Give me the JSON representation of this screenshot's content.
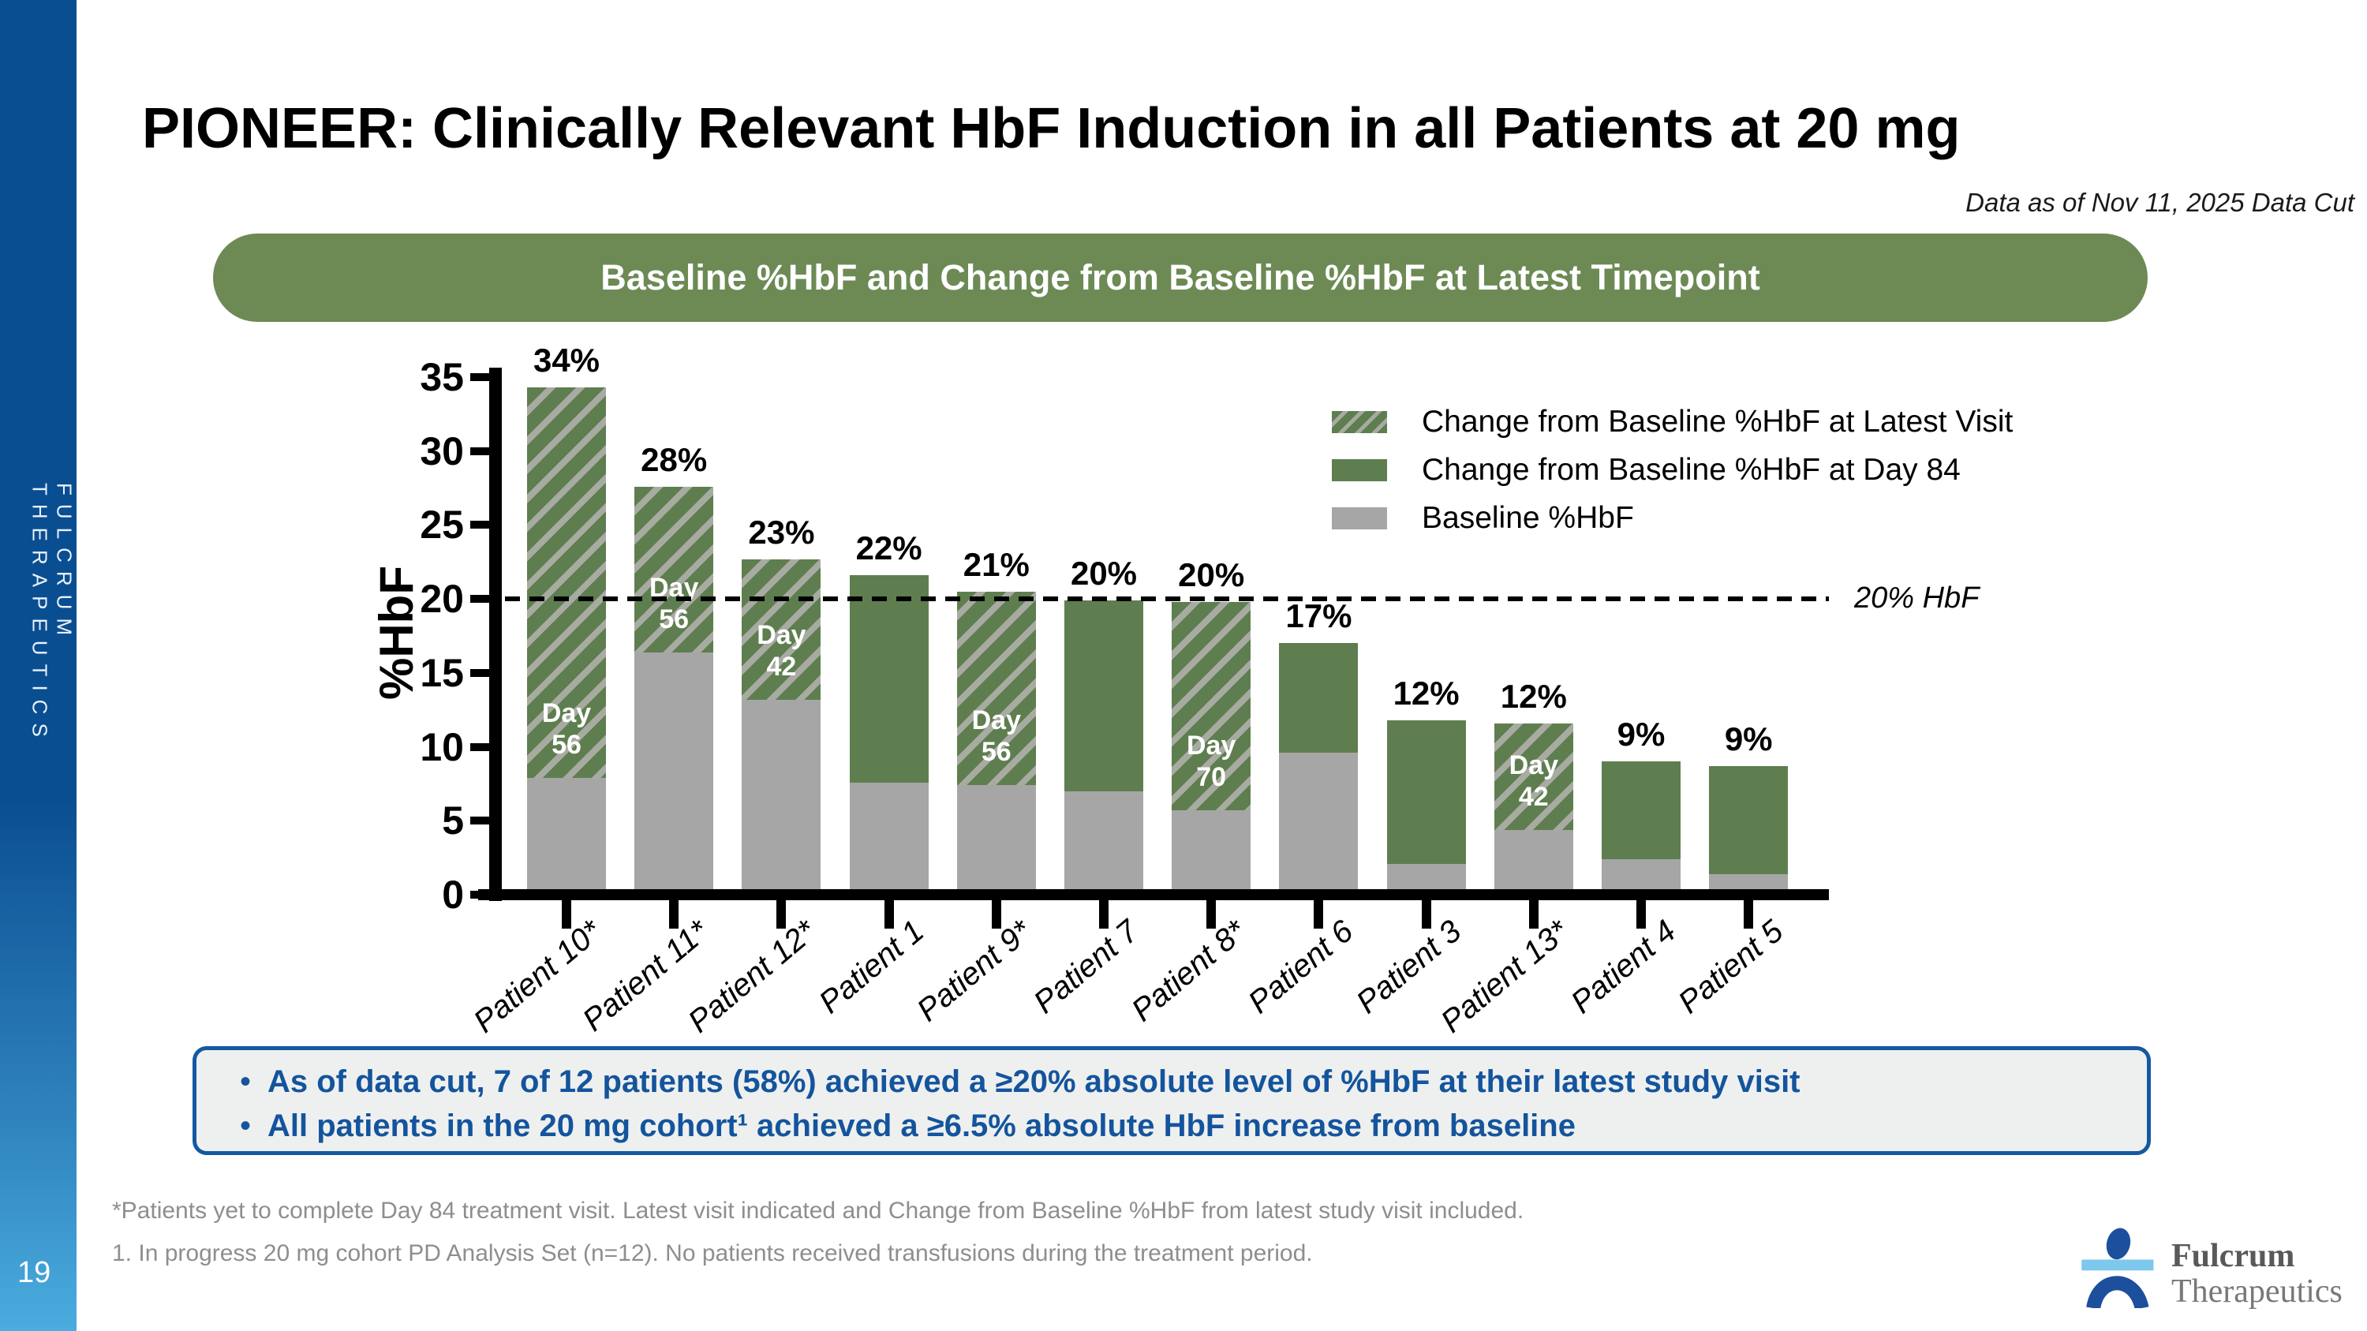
{
  "sidebar": {
    "brand_vertical": "FULCRUM THERAPEUTICS",
    "page_number": "19"
  },
  "header": {
    "title": "PIONEER: Clinically Relevant HbF Induction in all Patients at 20 mg",
    "data_cut_note": "Data as of Nov 11, 2025 Data Cut"
  },
  "banner": {
    "title": "Baseline %HbF and Change from Baseline %HbF at Latest Timepoint"
  },
  "chart_data": {
    "type": "bar",
    "stacked": true,
    "title": "Baseline %HbF and Change from Baseline %HbF at Latest Timepoint",
    "ylabel": "%HbF",
    "ylim": [
      0,
      35
    ],
    "yticks": [
      0,
      5,
      10,
      15,
      20,
      25,
      30,
      35
    ],
    "grid": false,
    "legend_position": "upper-right",
    "reference_line": {
      "value": 20,
      "label": "20% HbF"
    },
    "legend": [
      {
        "label": "Change from Baseline %HbF at Latest Visit",
        "style": "hatched-green"
      },
      {
        "label": "Change from Baseline %HbF at Day 84",
        "style": "solid-green"
      },
      {
        "label": "Baseline %HbF",
        "style": "gray"
      }
    ],
    "categories": [
      "Patient 10*",
      "Patient 11*",
      "Patient 12*",
      "Patient 1",
      "Patient 9*",
      "Patient 7",
      "Patient 8*",
      "Patient 6",
      "Patient 3",
      "Patient 13*",
      "Patient 4",
      "Patient 5"
    ],
    "bars": [
      {
        "category": "Patient 10*",
        "baseline": 7.9,
        "change": 26.4,
        "total": 34.3,
        "value_label": "34%",
        "change_type": "latest_visit",
        "day_label": "Day 56"
      },
      {
        "category": "Patient 11*",
        "baseline": 16.4,
        "change": 11.2,
        "total": 27.6,
        "value_label": "28%",
        "change_type": "latest_visit",
        "day_label": "Day 56"
      },
      {
        "category": "Patient 12*",
        "baseline": 13.2,
        "change": 9.5,
        "total": 22.7,
        "value_label": "23%",
        "change_type": "latest_visit",
        "day_label": "Day 42"
      },
      {
        "category": "Patient 1",
        "baseline": 7.6,
        "change": 14.0,
        "total": 21.6,
        "value_label": "22%",
        "change_type": "day_84",
        "day_label": ""
      },
      {
        "category": "Patient 9*",
        "baseline": 7.4,
        "change": 13.1,
        "total": 20.5,
        "value_label": "21%",
        "change_type": "latest_visit",
        "day_label": "Day 56"
      },
      {
        "category": "Patient 7",
        "baseline": 7.0,
        "change": 12.9,
        "total": 19.9,
        "value_label": "20%",
        "change_type": "day_84",
        "day_label": ""
      },
      {
        "category": "Patient 8*",
        "baseline": 5.7,
        "change": 14.1,
        "total": 19.8,
        "value_label": "20%",
        "change_type": "latest_visit",
        "day_label": "Day 70"
      },
      {
        "category": "Patient 6",
        "baseline": 9.6,
        "change": 7.4,
        "total": 17.0,
        "value_label": "17%",
        "change_type": "day_84",
        "day_label": ""
      },
      {
        "category": "Patient 3",
        "baseline": 2.1,
        "change": 9.7,
        "total": 11.8,
        "value_label": "12%",
        "change_type": "day_84",
        "day_label": ""
      },
      {
        "category": "Patient 13*",
        "baseline": 4.4,
        "change": 7.2,
        "total": 11.6,
        "value_label": "12%",
        "change_type": "latest_visit",
        "day_label": "Day 42"
      },
      {
        "category": "Patient 4",
        "baseline": 2.4,
        "change": 6.6,
        "total": 9.0,
        "value_label": "9%",
        "change_type": "day_84",
        "day_label": ""
      },
      {
        "category": "Patient 5",
        "baseline": 1.4,
        "change": 7.3,
        "total": 8.7,
        "value_label": "9%",
        "change_type": "day_84",
        "day_label": ""
      }
    ]
  },
  "callout": {
    "bullets": [
      "As of data cut, 7 of 12 patients (58%) achieved a ≥20% absolute level of %HbF at their latest study visit",
      "All patients in the 20 mg cohort¹ achieved a ≥6.5% absolute HbF increase from baseline"
    ]
  },
  "footnotes": [
    "*Patients yet to complete Day 84 treatment visit. Latest visit indicated and Change from Baseline %HbF from latest study visit included.",
    "1. In progress 20 mg cohort PD Analysis Set (n=12). No patients received transfusions during the treatment period."
  ],
  "logo": {
    "name": "Fulcrum Therapeutics",
    "line1": "Fulcrum",
    "line2": "Therapeutics"
  },
  "colors": {
    "accent_green": "#5e7e4f",
    "hatch_stripe": "#a7aba1",
    "baseline_gray": "#a6a6a6",
    "banner_green": "#6d8a55",
    "sidebar_blue_top": "#0a4e92",
    "sidebar_blue_bottom": "#4aacdf",
    "callout_text_blue": "#14549d",
    "callout_border_blue": "#1458a1",
    "footnote_gray": "#8e8e8e",
    "reference_line_black": "#000000"
  }
}
